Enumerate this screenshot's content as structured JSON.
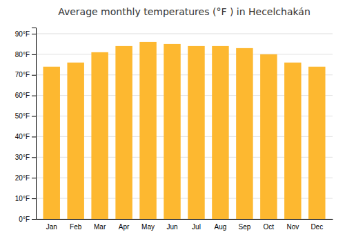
{
  "chart_data": {
    "type": "bar",
    "title": "Average monthly temperatures (°F ) in Hecelchakán",
    "categories": [
      "Jan",
      "Feb",
      "Mar",
      "Apr",
      "May",
      "Jun",
      "Jul",
      "Aug",
      "Sep",
      "Oct",
      "Nov",
      "Dec"
    ],
    "values": [
      74,
      76,
      81,
      84,
      86,
      85,
      84,
      84,
      83,
      80,
      76,
      74
    ],
    "color": "#FDB830",
    "ylim": [
      0,
      93
    ],
    "yticks": [
      {
        "value": 0,
        "label": "0°F"
      },
      {
        "value": 10,
        "label": "10°F"
      },
      {
        "value": 20,
        "label": "20°F"
      },
      {
        "value": 30,
        "label": "30°F"
      },
      {
        "value": 40,
        "label": "40°F"
      },
      {
        "value": 50,
        "label": "50°F"
      },
      {
        "value": 60,
        "label": "60°F"
      },
      {
        "value": 70,
        "label": "70°F"
      },
      {
        "value": 80,
        "label": "80°F"
      },
      {
        "value": 90,
        "label": "90°F"
      }
    ],
    "grid": true
  }
}
